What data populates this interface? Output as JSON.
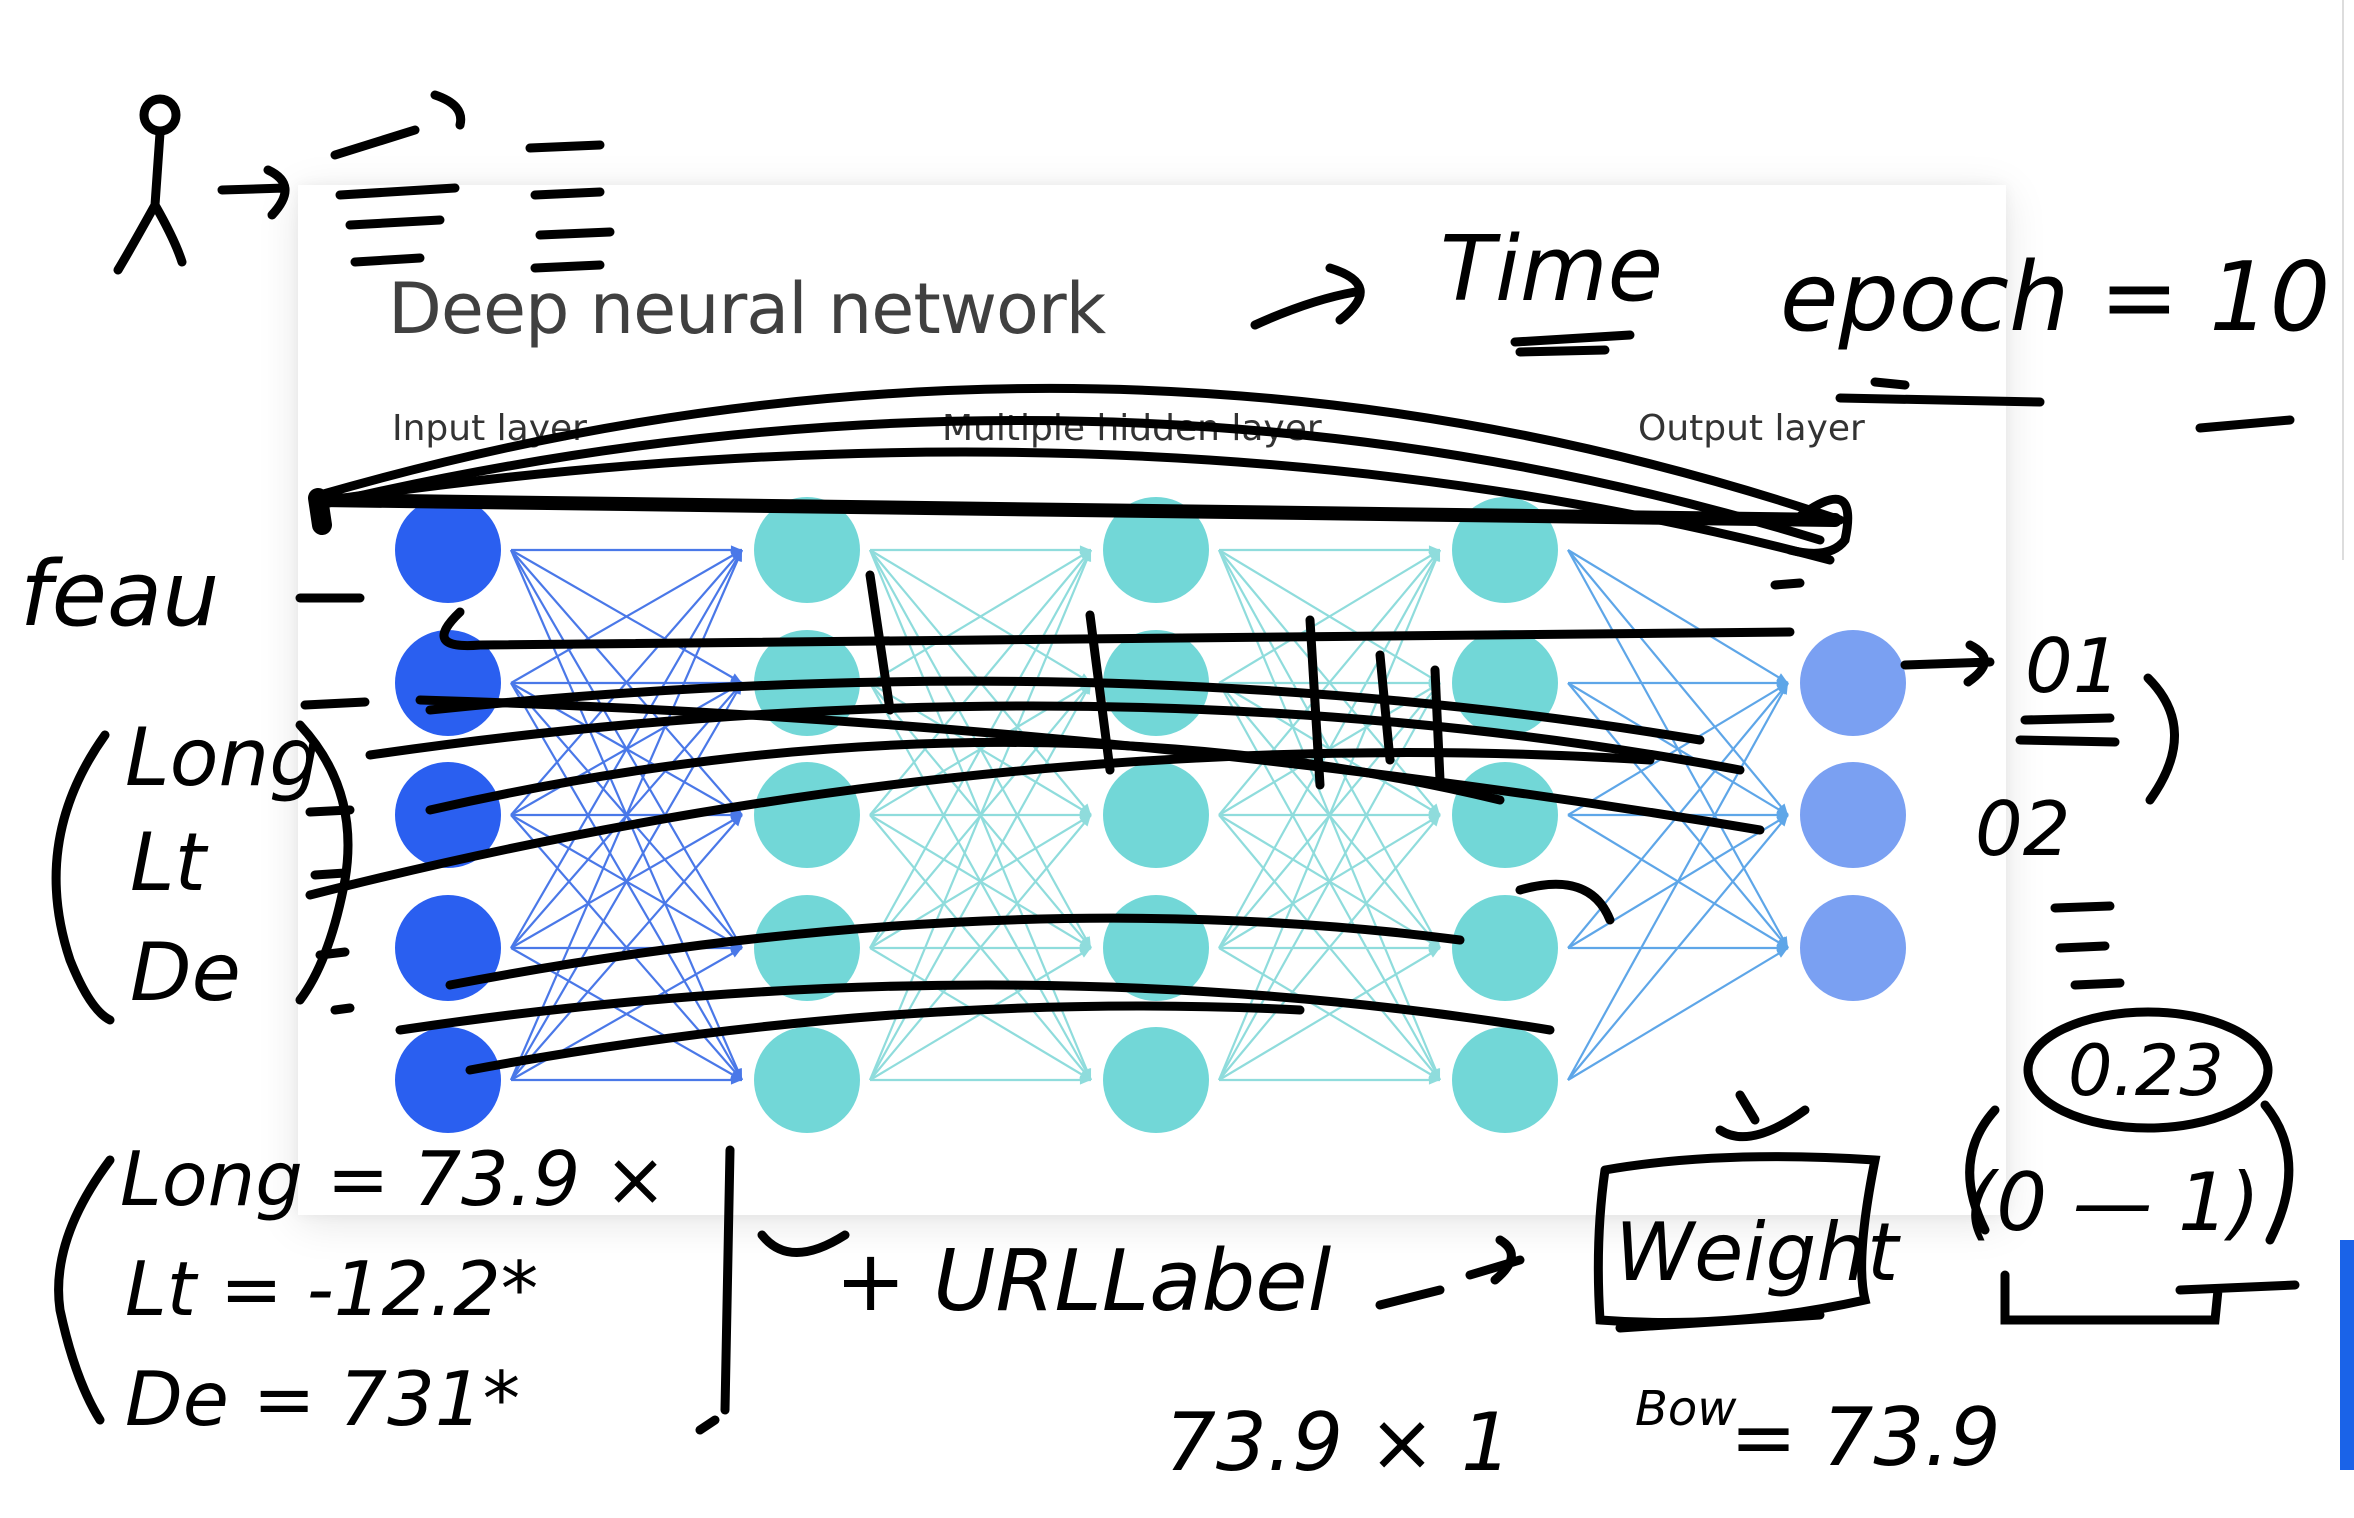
{
  "diagram": {
    "title": "Deep neural network",
    "layers": {
      "input": "Input layer",
      "hidden": "Multiple hidden layer",
      "output": "Output layer"
    }
  },
  "colors": {
    "input_node": "#2a5ff0",
    "hidden_node": "#72d7d7",
    "output_node": "#7aa0f2",
    "input_edge": "#4a78e8",
    "hidden_edge": "#8fdcdc",
    "output_edge": "#5ea6e8",
    "ink": "#000000"
  },
  "annotations": {
    "time": "Time",
    "epoch": "epoch = 10",
    "feature": "feau",
    "features": [
      "Long",
      "Lt",
      "De"
    ],
    "outputs": [
      "01",
      "02"
    ],
    "probability": "0.23",
    "range": "(0 — 1)",
    "equations": [
      "Long = 73.9 ×",
      "Lt = -12.2*",
      "De = 731*"
    ],
    "url_label": "+ URLLabel",
    "weight": "Weight",
    "calc": "73.9 × 1",
    "bow": "Bow",
    "result": "= 73.9"
  }
}
